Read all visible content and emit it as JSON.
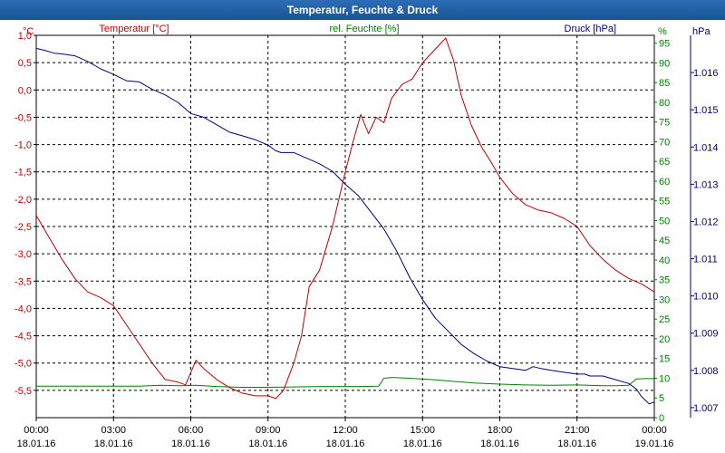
{
  "window": {
    "title": "Temperatur, Feuchte & Druck"
  },
  "chart_data": {
    "type": "line",
    "title": "Temperatur, Feuchte & Druck",
    "x_ticks": [
      {
        "time": "00:00",
        "date": "18.01.16"
      },
      {
        "time": "03:00",
        "date": "18.01.16"
      },
      {
        "time": "06:00",
        "date": "18.01.16"
      },
      {
        "time": "09:00",
        "date": "18.01.16"
      },
      {
        "time": "12:00",
        "date": "18.01.16"
      },
      {
        "time": "15:00",
        "date": "18.01.16"
      },
      {
        "time": "18:00",
        "date": "18.01.16"
      },
      {
        "time": "21:00",
        "date": "18.01.16"
      },
      {
        "time": "00:00",
        "date": "19.01.16"
      }
    ],
    "xlim": [
      0,
      24
    ],
    "grid": true,
    "axes": {
      "temperature": {
        "unit": "°C",
        "ylim": [
          -6,
          1
        ],
        "ticks": [
          "1,0",
          "0,5",
          "0,0",
          "-0,5",
          "-1,0",
          "-1,5",
          "-2,0",
          "-2,5",
          "-3,0",
          "-3,5",
          "-4,0",
          "-4,5",
          "-5,0",
          "-5,5"
        ],
        "tick_values": [
          1,
          0.5,
          0,
          -0.5,
          -1,
          -1.5,
          -2,
          -2.5,
          -3,
          -3.5,
          -4,
          -4.5,
          -5,
          -5.5
        ]
      },
      "humidity": {
        "unit": "%",
        "ylim": [
          0,
          97
        ],
        "ticks": [
          "95",
          "90",
          "85",
          "80",
          "75",
          "70",
          "65",
          "60",
          "55",
          "50",
          "45",
          "40",
          "35",
          "30",
          "25",
          "20",
          "15",
          "10",
          "5",
          "0"
        ],
        "tick_values": [
          95,
          90,
          85,
          80,
          75,
          70,
          65,
          60,
          55,
          50,
          45,
          40,
          35,
          30,
          25,
          20,
          15,
          10,
          5,
          0
        ]
      },
      "pressure": {
        "unit": "hPa",
        "ylim": [
          1006.73,
          1017.0
        ],
        "ticks": [
          "1.016",
          "1.015",
          "1.014",
          "1.013",
          "1.012",
          "1.011",
          "1.010",
          "1.009",
          "1.008",
          "1.007"
        ],
        "tick_values": [
          1016,
          1015,
          1014,
          1013,
          1012,
          1011,
          1010,
          1009,
          1008,
          1007
        ]
      }
    },
    "series": [
      {
        "name": "Temperatur [°C]",
        "color": "#c00000",
        "axis": "temperature",
        "x": [
          0,
          0.5,
          1,
          1.5,
          2,
          2.5,
          3,
          3.5,
          4,
          4.5,
          5,
          5.5,
          5.8,
          6.2,
          6.5,
          7,
          7.5,
          8,
          8.5,
          9,
          9.3,
          9.6,
          10,
          10.3,
          10.6,
          11,
          11.5,
          12,
          12.3,
          12.6,
          12.9,
          13.2,
          13.5,
          13.8,
          14.2,
          14.6,
          15,
          15.4,
          15.7,
          15.9,
          16.2,
          16.5,
          16.9,
          17.3,
          17.7,
          18,
          18.5,
          19,
          19.5,
          20,
          20.5,
          21,
          21.5,
          22,
          22.5,
          23,
          23.5,
          24
        ],
        "values": [
          -2.3,
          -2.7,
          -3.1,
          -3.45,
          -3.7,
          -3.8,
          -3.95,
          -4.3,
          -4.65,
          -5.0,
          -5.3,
          -5.35,
          -5.4,
          -4.95,
          -5.1,
          -5.3,
          -5.45,
          -5.55,
          -5.6,
          -5.6,
          -5.65,
          -5.5,
          -5.0,
          -4.5,
          -3.6,
          -3.3,
          -2.5,
          -1.5,
          -0.95,
          -0.45,
          -0.8,
          -0.5,
          -0.6,
          -0.15,
          0.1,
          0.2,
          0.5,
          0.7,
          0.85,
          0.95,
          0.55,
          -0.1,
          -0.65,
          -1.05,
          -1.35,
          -1.6,
          -1.9,
          -2.1,
          -2.2,
          -2.25,
          -2.35,
          -2.5,
          -2.85,
          -3.1,
          -3.3,
          -3.45,
          -3.55,
          -3.7
        ]
      },
      {
        "name": "rel. Feuchte [%]",
        "color": "#008000",
        "axis": "humidity",
        "x": [
          0,
          2,
          4,
          4.8,
          5.6,
          6.2,
          7,
          8,
          9,
          10,
          11,
          12,
          12.5,
          13.3,
          13.5,
          13.8,
          14.5,
          15.5,
          16,
          17,
          18,
          19,
          20,
          21,
          22,
          22.5,
          23,
          23.3,
          23.6,
          24
        ],
        "values": [
          8,
          8,
          8,
          8.2,
          8.1,
          8.2,
          7.9,
          7.7,
          7.7,
          7.8,
          7.9,
          7.9,
          7.9,
          8,
          10,
          10.2,
          10,
          9.6,
          9.3,
          8.8,
          8.5,
          8.3,
          8.2,
          8.3,
          8.1,
          8.1,
          8.2,
          9.8,
          9.9,
          9.9
        ]
      },
      {
        "name": "Druck [hPa]",
        "color": "#000080",
        "axis": "pressure",
        "x": [
          0,
          0.3,
          0.7,
          1,
          1.5,
          2,
          2.5,
          3,
          3.3,
          3.5,
          4,
          4.5,
          5,
          5.5,
          6,
          6.5,
          7,
          7.5,
          8,
          8.5,
          9,
          9.3,
          9.5,
          10,
          10.5,
          11,
          11.5,
          12,
          12.5,
          13,
          13.5,
          14,
          14.5,
          15,
          15.5,
          16,
          16.5,
          17,
          17.5,
          18,
          18.5,
          19,
          19.3,
          19.6,
          20,
          20.5,
          21,
          21.3,
          21.5,
          22,
          22.5,
          23,
          23.3,
          23.5,
          23.8,
          24
        ],
        "values": [
          1016.65,
          1016.6,
          1016.52,
          1016.5,
          1016.45,
          1016.3,
          1016.1,
          1015.95,
          1015.85,
          1015.78,
          1015.75,
          1015.55,
          1015.4,
          1015.2,
          1014.9,
          1014.8,
          1014.6,
          1014.4,
          1014.3,
          1014.2,
          1014.05,
          1013.9,
          1013.85,
          1013.85,
          1013.7,
          1013.55,
          1013.35,
          1013.0,
          1012.7,
          1012.25,
          1011.8,
          1011.2,
          1010.5,
          1009.9,
          1009.4,
          1009.05,
          1008.7,
          1008.45,
          1008.25,
          1008.1,
          1008.05,
          1008.0,
          1008.1,
          1008.05,
          1008.0,
          1007.95,
          1007.9,
          1007.9,
          1007.85,
          1007.85,
          1007.75,
          1007.65,
          1007.5,
          1007.3,
          1007.1,
          1007.15
        ]
      }
    ]
  }
}
